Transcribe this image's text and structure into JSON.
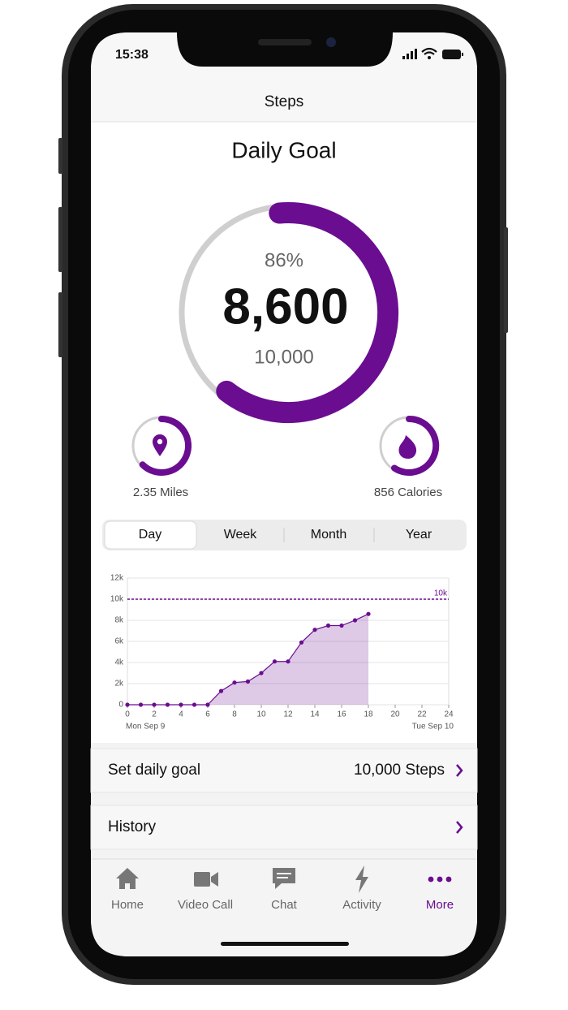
{
  "status_bar": {
    "time": "15:38"
  },
  "header": {
    "title": "Steps"
  },
  "goal": {
    "title": "Daily Goal",
    "percent": "86%",
    "steps": "8,600",
    "target": "10,000"
  },
  "stats": [
    {
      "label": "2.35 Miles"
    },
    {
      "label": "856 Calories"
    }
  ],
  "tabs": {
    "items": [
      "Day",
      "Week",
      "Month",
      "Year"
    ]
  },
  "chart": {
    "type": "line",
    "color": "#6a0d91",
    "grid": true,
    "x": [
      0,
      1,
      2,
      3,
      4,
      5,
      6,
      7,
      8,
      9,
      10,
      11,
      12,
      13,
      14,
      15,
      16,
      17,
      18
    ],
    "values": [
      0,
      0,
      0,
      0,
      0,
      0,
      0,
      1300,
      2100,
      2200,
      3000,
      4100,
      4100,
      5900,
      7100,
      7500,
      7500,
      8000,
      8600
    ],
    "xlim": [
      0,
      24
    ],
    "xticks": [
      0,
      2,
      4,
      6,
      8,
      10,
      12,
      14,
      16,
      18,
      20,
      22,
      24
    ],
    "ylim": [
      0,
      12000
    ],
    "yticks": [
      0,
      {
        "value": 2000,
        "label": "2k"
      },
      {
        "value": 4000,
        "label": "4k"
      },
      {
        "value": 6000,
        "label": "6k"
      },
      {
        "value": 8000,
        "label": "8k"
      },
      {
        "value": 10000,
        "label": "10k"
      },
      {
        "value": 12000,
        "label": "12k"
      }
    ],
    "goal_line": {
      "value": 10000,
      "label": "10k"
    },
    "start_label": "Mon Sep 9",
    "end_label": "Tue Sep 10"
  },
  "settings": [
    {
      "label": "Set daily goal",
      "value": "10,000 Steps"
    },
    {
      "label": "History"
    }
  ],
  "tab_bar": {
    "items": [
      "Home",
      "Video Call",
      "Chat",
      "Activity",
      "More"
    ]
  }
}
